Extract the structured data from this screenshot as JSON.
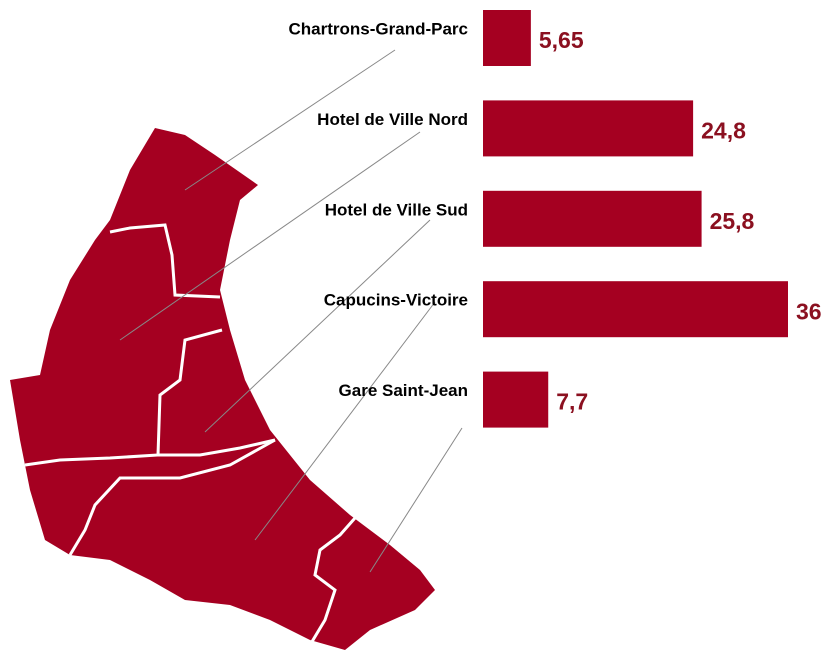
{
  "chart_data": {
    "type": "bar",
    "orientation": "horizontal",
    "categories": [
      "Chartrons-Grand-Parc",
      "Hotel de Ville Nord",
      "Hotel de Ville Sud",
      "Capucins-Victoire",
      "Gare Saint-Jean"
    ],
    "values": [
      5.65,
      24.8,
      25.8,
      36,
      7.7
    ],
    "value_labels": [
      "5,65",
      "24,8",
      "25,8",
      "36",
      "7,7"
    ],
    "color": "#a50021",
    "label_color": "#8b1020"
  }
}
